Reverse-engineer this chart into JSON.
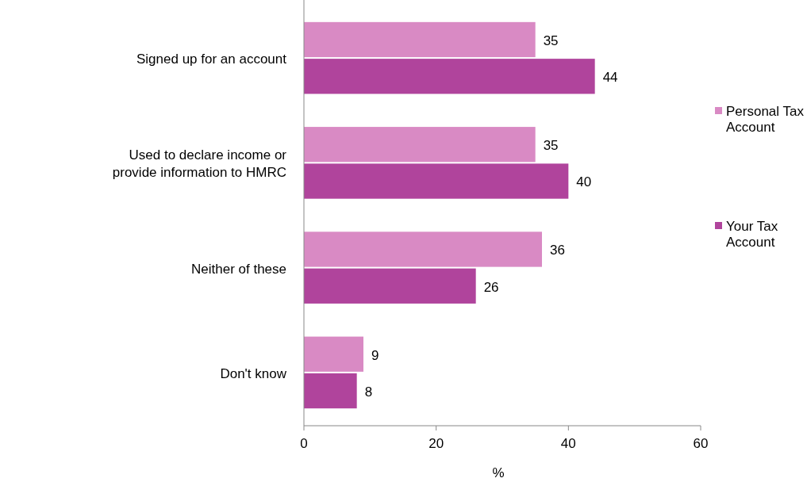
{
  "chart_data": {
    "type": "bar",
    "orientation": "horizontal",
    "xlabel": "%",
    "categories": [
      "Signed up for an account",
      "Used to declare income or provide information to HMRC",
      "Neither of these",
      "Don't know"
    ],
    "series": [
      {
        "name": "Personal Tax Account",
        "color": "#d98ac4",
        "values": [
          35,
          35,
          36,
          9
        ]
      },
      {
        "name": "Your Tax Account",
        "color": "#b0449c",
        "values": [
          44,
          40,
          26,
          8
        ]
      }
    ],
    "xlim": [
      0,
      60
    ],
    "xticks": [
      0,
      20,
      40,
      60
    ],
    "data_labels": true,
    "legend": "right",
    "grid": false
  }
}
